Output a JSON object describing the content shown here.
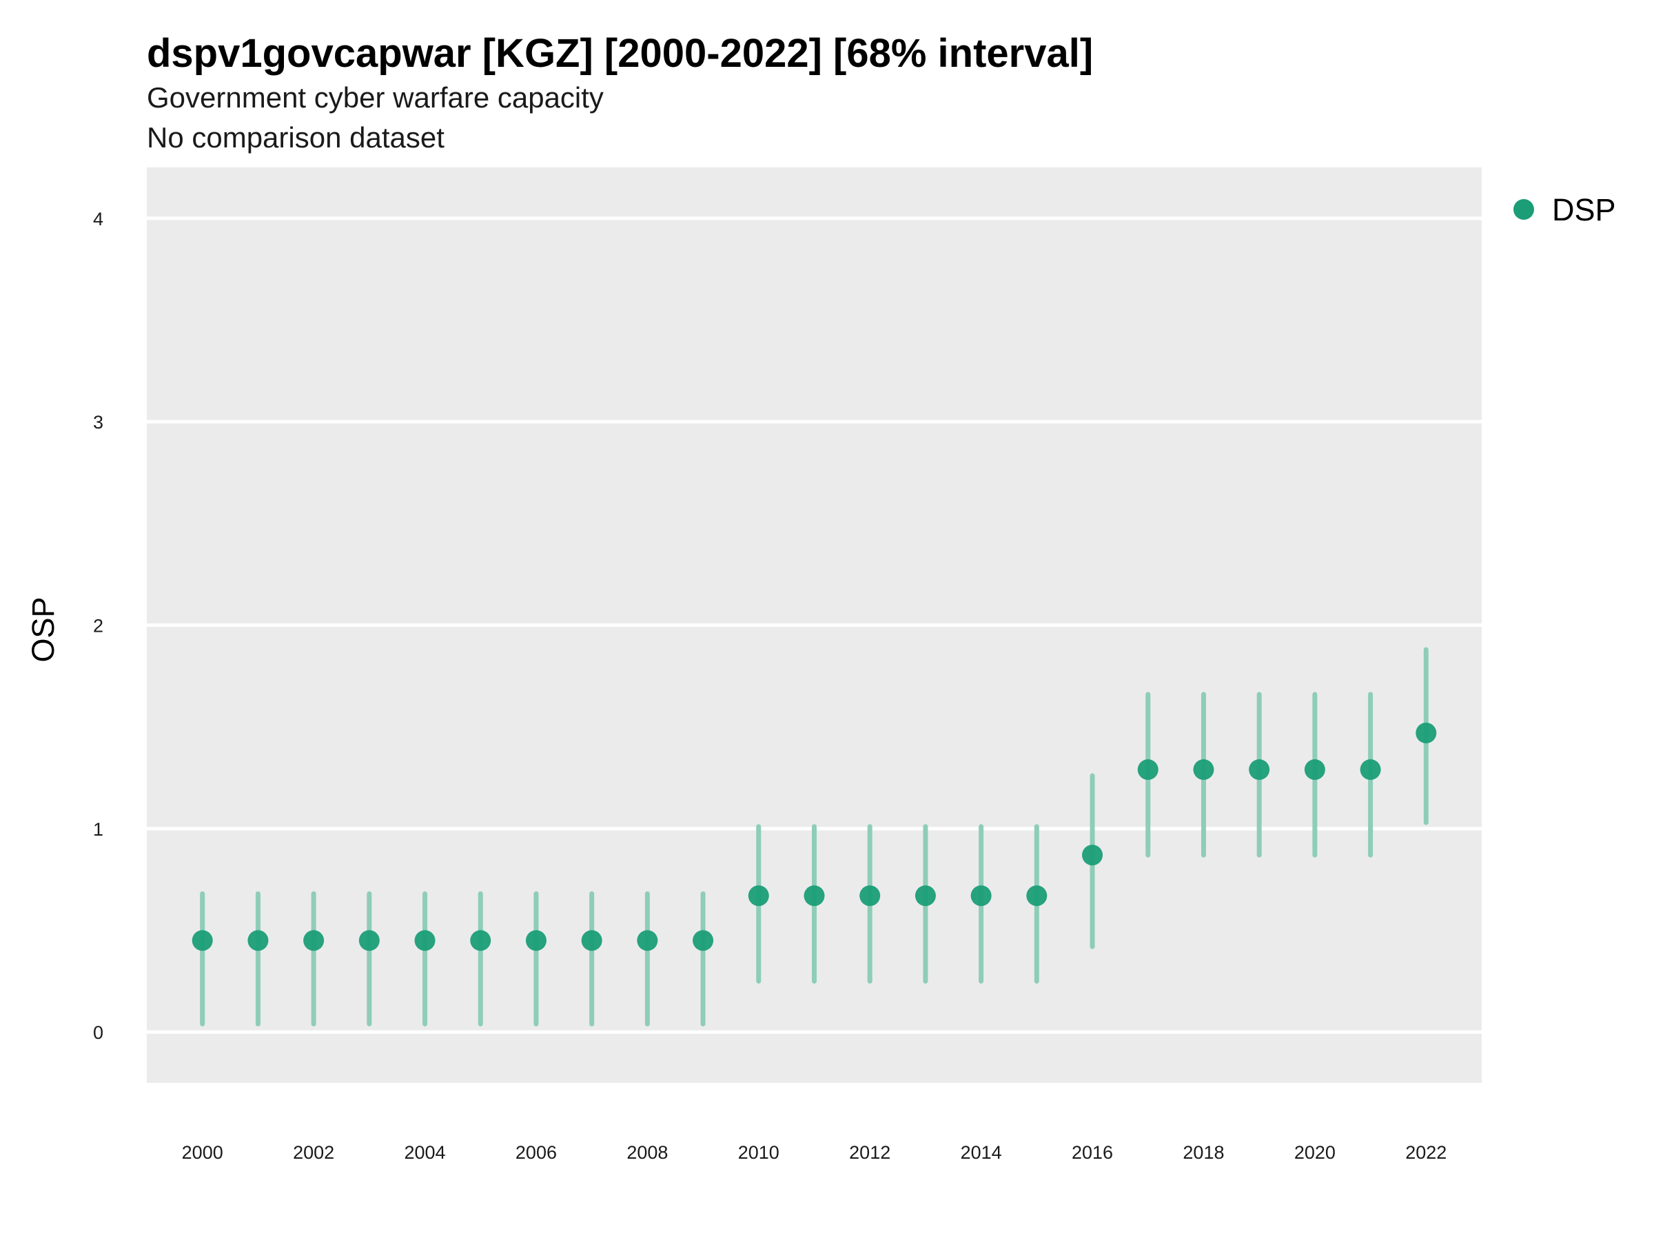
{
  "chart_data": {
    "type": "scatter",
    "title": "dspv1govcapwar [KGZ] [2000-2022] [68% interval]",
    "subtitle": "Government cyber warfare capacity",
    "subtitle2": "No comparison dataset",
    "xlabel": "",
    "ylabel": "OSP",
    "xlim": [
      1999,
      2023
    ],
    "ylim": [
      -0.25,
      4.25
    ],
    "x_ticks": [
      2000,
      2002,
      2004,
      2006,
      2008,
      2010,
      2012,
      2014,
      2016,
      2018,
      2020,
      2022
    ],
    "y_ticks": [
      0,
      1,
      2,
      3,
      4
    ],
    "grid": true,
    "legend_position": "right",
    "colors": {
      "panel": "#ebebeb",
      "grid": "#ffffff",
      "point": "#1b9e77",
      "interval": "#8ecdb8"
    },
    "series": [
      {
        "name": "DSP",
        "x": [
          2000,
          2001,
          2002,
          2003,
          2004,
          2005,
          2006,
          2007,
          2008,
          2009,
          2010,
          2011,
          2012,
          2013,
          2014,
          2015,
          2016,
          2017,
          2018,
          2019,
          2020,
          2021,
          2022
        ],
        "y": [
          0.45,
          0.45,
          0.45,
          0.45,
          0.45,
          0.45,
          0.45,
          0.45,
          0.45,
          0.45,
          0.67,
          0.67,
          0.67,
          0.67,
          0.67,
          0.67,
          0.87,
          1.29,
          1.29,
          1.29,
          1.29,
          1.29,
          1.47
        ],
        "lower": [
          0.04,
          0.04,
          0.04,
          0.04,
          0.04,
          0.04,
          0.04,
          0.04,
          0.04,
          0.04,
          0.25,
          0.25,
          0.25,
          0.25,
          0.25,
          0.25,
          0.42,
          0.87,
          0.87,
          0.87,
          0.87,
          0.87,
          1.03
        ],
        "upper": [
          0.68,
          0.68,
          0.68,
          0.68,
          0.68,
          0.68,
          0.68,
          0.68,
          0.68,
          0.68,
          1.01,
          1.01,
          1.01,
          1.01,
          1.01,
          1.01,
          1.26,
          1.66,
          1.66,
          1.66,
          1.66,
          1.66,
          1.88
        ]
      }
    ]
  }
}
